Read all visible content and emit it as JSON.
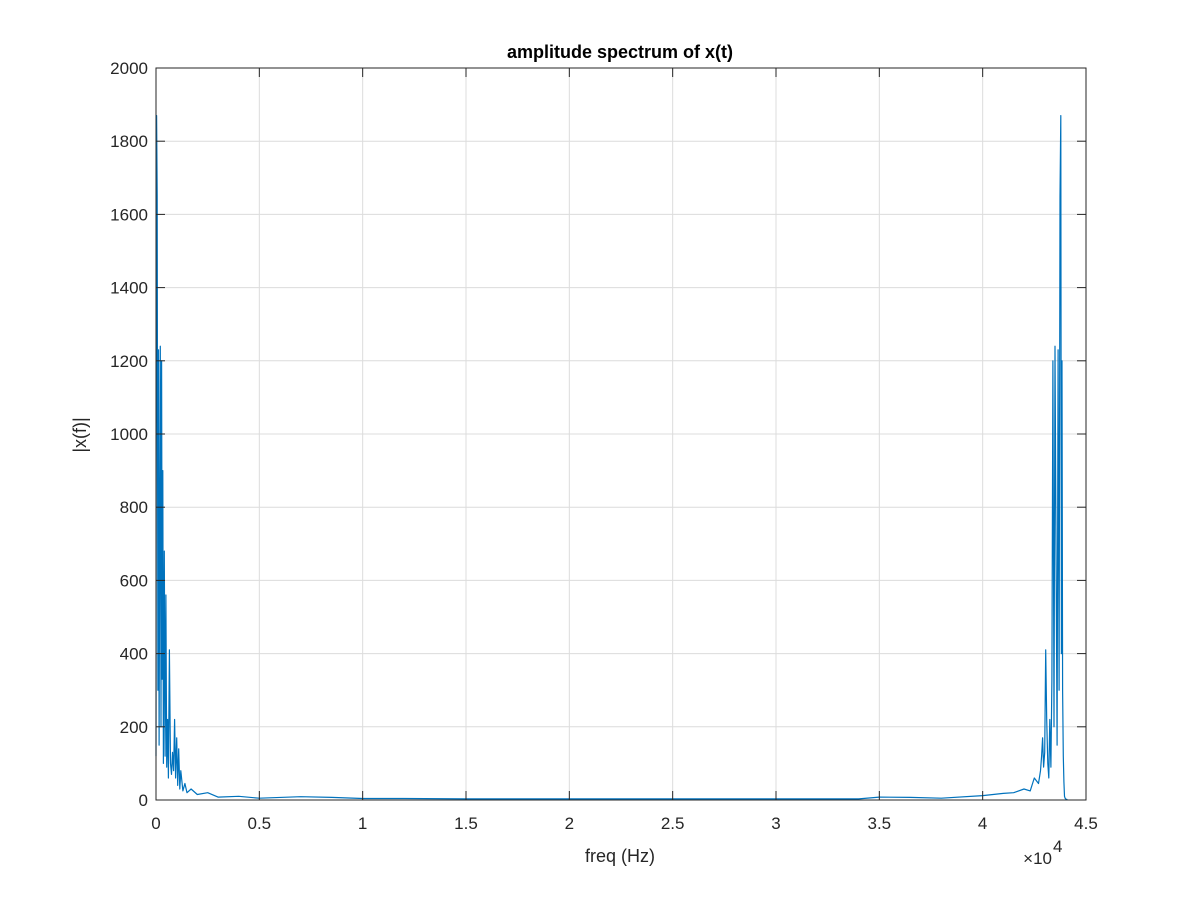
{
  "chart_data": {
    "type": "line",
    "title": "amplitude spectrum of x(t)",
    "xlabel": "freq (Hz)",
    "ylabel": "|x(f)|",
    "xlim": [
      0,
      45000
    ],
    "ylim": [
      0,
      2000
    ],
    "x_multiplier_label": "×10",
    "x_multiplier_exponent": "4",
    "x_ticks": [
      0,
      5000,
      10000,
      15000,
      20000,
      25000,
      30000,
      35000,
      40000,
      45000
    ],
    "x_tick_labels": [
      "0",
      "0.5",
      "1",
      "1.5",
      "2",
      "2.5",
      "3",
      "3.5",
      "4",
      "4.5"
    ],
    "y_ticks": [
      0,
      200,
      400,
      600,
      800,
      1000,
      1200,
      1400,
      1600,
      1800,
      2000
    ],
    "y_tick_labels": [
      "0",
      "200",
      "400",
      "600",
      "800",
      "1000",
      "1200",
      "1400",
      "1600",
      "1800",
      "2000"
    ],
    "grid": true,
    "line_color": "#0072BD",
    "series": [
      {
        "x": [
          0,
          30,
          60,
          90,
          120,
          150,
          180,
          210,
          240,
          270,
          300,
          330,
          360,
          400,
          440,
          480,
          520,
          560,
          600,
          650,
          700,
          750,
          800,
          850,
          900,
          950,
          1000,
          1050,
          1100,
          1150,
          1200,
          1300,
          1400,
          1500,
          1700,
          2000,
          2500,
          3000,
          4000,
          5000,
          7000,
          8500,
          10000,
          12000,
          15000,
          20000,
          22000,
          25000,
          30000,
          32000,
          34000,
          35000,
          36500,
          38000,
          40000,
          41000,
          41500,
          42000,
          42300,
          42500,
          42700,
          42800,
          42850,
          42900,
          42950,
          43000,
          43050,
          43100,
          43150,
          43200,
          43250,
          43300,
          43350,
          43400,
          43450,
          43500,
          43550,
          43600,
          43650,
          43700,
          43740,
          43780,
          43810,
          43840,
          43870,
          43900,
          43930,
          43960,
          43990,
          44020,
          44050,
          44100
        ],
        "y": [
          120,
          1870,
          1650,
          300,
          1230,
          150,
          700,
          1240,
          200,
          1200,
          330,
          900,
          100,
          680,
          120,
          560,
          90,
          220,
          60,
          410,
          100,
          70,
          130,
          80,
          220,
          60,
          170,
          40,
          140,
          30,
          80,
          25,
          45,
          20,
          30,
          15,
          20,
          8,
          10,
          5,
          9,
          7,
          4,
          4,
          3,
          3,
          3,
          3,
          3,
          3,
          3,
          8,
          7,
          5,
          12,
          18,
          20,
          30,
          25,
          60,
          45,
          80,
          120,
          170,
          90,
          130,
          410,
          220,
          100,
          60,
          220,
          90,
          330,
          1200,
          200,
          1240,
          700,
          150,
          1230,
          300,
          1650,
          1870,
          400,
          1200,
          300,
          120,
          50,
          10,
          5,
          3,
          2,
          1
        ]
      }
    ]
  }
}
